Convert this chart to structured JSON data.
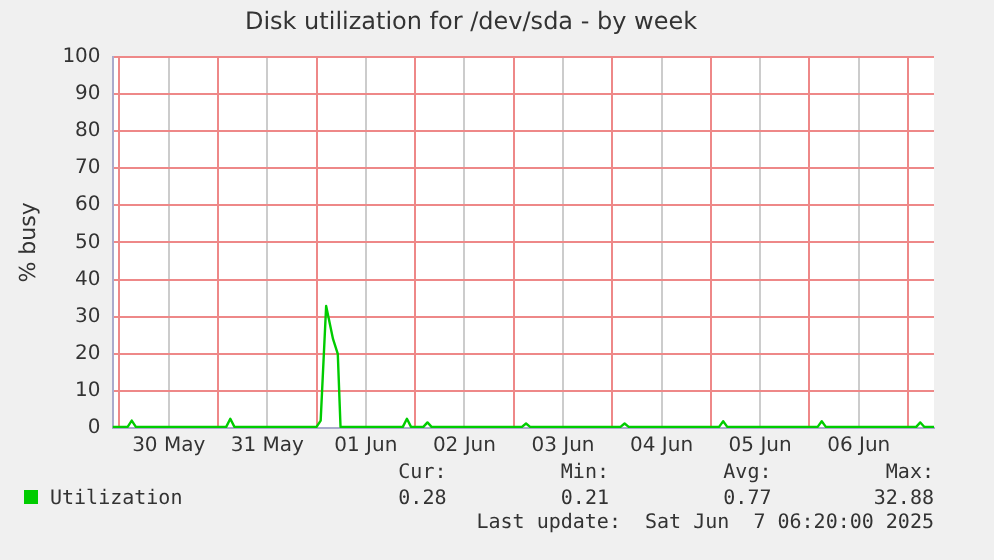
{
  "chart_data": {
    "type": "line",
    "title": "Disk utilization for /dev/sda - by week",
    "ylabel": "% busy",
    "series": [
      {
        "name": "Utilization",
        "color": "#00cc00",
        "x": [
          "2025-05-29T22:20",
          "2025-05-30T02:00",
          "2025-05-30T03:00",
          "2025-05-30T04:00",
          "2025-05-31T02:00",
          "2025-05-31T03:00",
          "2025-05-31T04:00",
          "2025-06-01T00:00",
          "2025-06-01T01:00",
          "2025-06-01T02:20",
          "2025-06-01T04:00",
          "2025-06-01T05:10",
          "2025-06-01T05:50",
          "2025-06-01T07:00",
          "2025-06-01T21:00",
          "2025-06-01T22:00",
          "2025-06-01T23:00",
          "2025-06-02T02:00",
          "2025-06-02T03:00",
          "2025-06-02T04:00",
          "2025-06-03T02:00",
          "2025-06-03T03:00",
          "2025-06-03T04:00",
          "2025-06-04T02:00",
          "2025-06-04T03:00",
          "2025-06-04T04:00",
          "2025-06-05T02:00",
          "2025-06-05T03:00",
          "2025-06-05T04:00",
          "2025-06-06T02:00",
          "2025-06-06T03:00",
          "2025-06-06T04:00",
          "2025-06-07T02:00",
          "2025-06-07T03:00",
          "2025-06-07T04:00",
          "2025-06-07T06:20"
        ],
        "values": [
          0.3,
          0.3,
          2,
          0.3,
          0.3,
          2.5,
          0.3,
          0.3,
          2,
          32.88,
          24,
          20,
          0.3,
          0.3,
          0.3,
          2.5,
          0.3,
          0.3,
          1.5,
          0.3,
          0.3,
          1.2,
          0.3,
          0.3,
          1.2,
          0.3,
          0.3,
          1.8,
          0.3,
          0.3,
          1.8,
          0.3,
          0.3,
          1.5,
          0.28,
          0.28
        ]
      }
    ],
    "xlim": [
      "2025-05-29T22:20",
      "2025-06-07T06:20"
    ],
    "xticks": [
      {
        "value": "2025-05-30T00:00",
        "label": null
      },
      {
        "value": "2025-05-30T12:00",
        "label": "30 May"
      },
      {
        "value": "2025-05-31T00:00",
        "label": null
      },
      {
        "value": "2025-05-31T12:00",
        "label": "31 May"
      },
      {
        "value": "2025-06-01T00:00",
        "label": null
      },
      {
        "value": "2025-06-01T12:00",
        "label": "01 Jun"
      },
      {
        "value": "2025-06-02T00:00",
        "label": null
      },
      {
        "value": "2025-06-02T12:00",
        "label": "02 Jun"
      },
      {
        "value": "2025-06-03T00:00",
        "label": null
      },
      {
        "value": "2025-06-03T12:00",
        "label": "03 Jun"
      },
      {
        "value": "2025-06-04T00:00",
        "label": null
      },
      {
        "value": "2025-06-04T12:00",
        "label": "04 Jun"
      },
      {
        "value": "2025-06-05T00:00",
        "label": null
      },
      {
        "value": "2025-06-05T12:00",
        "label": "05 Jun"
      },
      {
        "value": "2025-06-06T00:00",
        "label": null
      },
      {
        "value": "2025-06-06T12:00",
        "label": "06 Jun"
      },
      {
        "value": "2025-06-07T00:00",
        "label": null
      }
    ],
    "ylim": [
      0,
      100
    ],
    "yticks": [
      0,
      10,
      20,
      30,
      40,
      50,
      60,
      70,
      80,
      90,
      100
    ],
    "grid": true,
    "legend": "bottom left",
    "marker": "none",
    "line_style": "solid",
    "annotations": [
      "Cur:",
      "Min:",
      "Avg:",
      "Max:",
      "0.28",
      "0.21",
      "0.77",
      "32.88",
      "Last update:  Sat Jun  7 06:20:00 2025"
    ]
  }
}
